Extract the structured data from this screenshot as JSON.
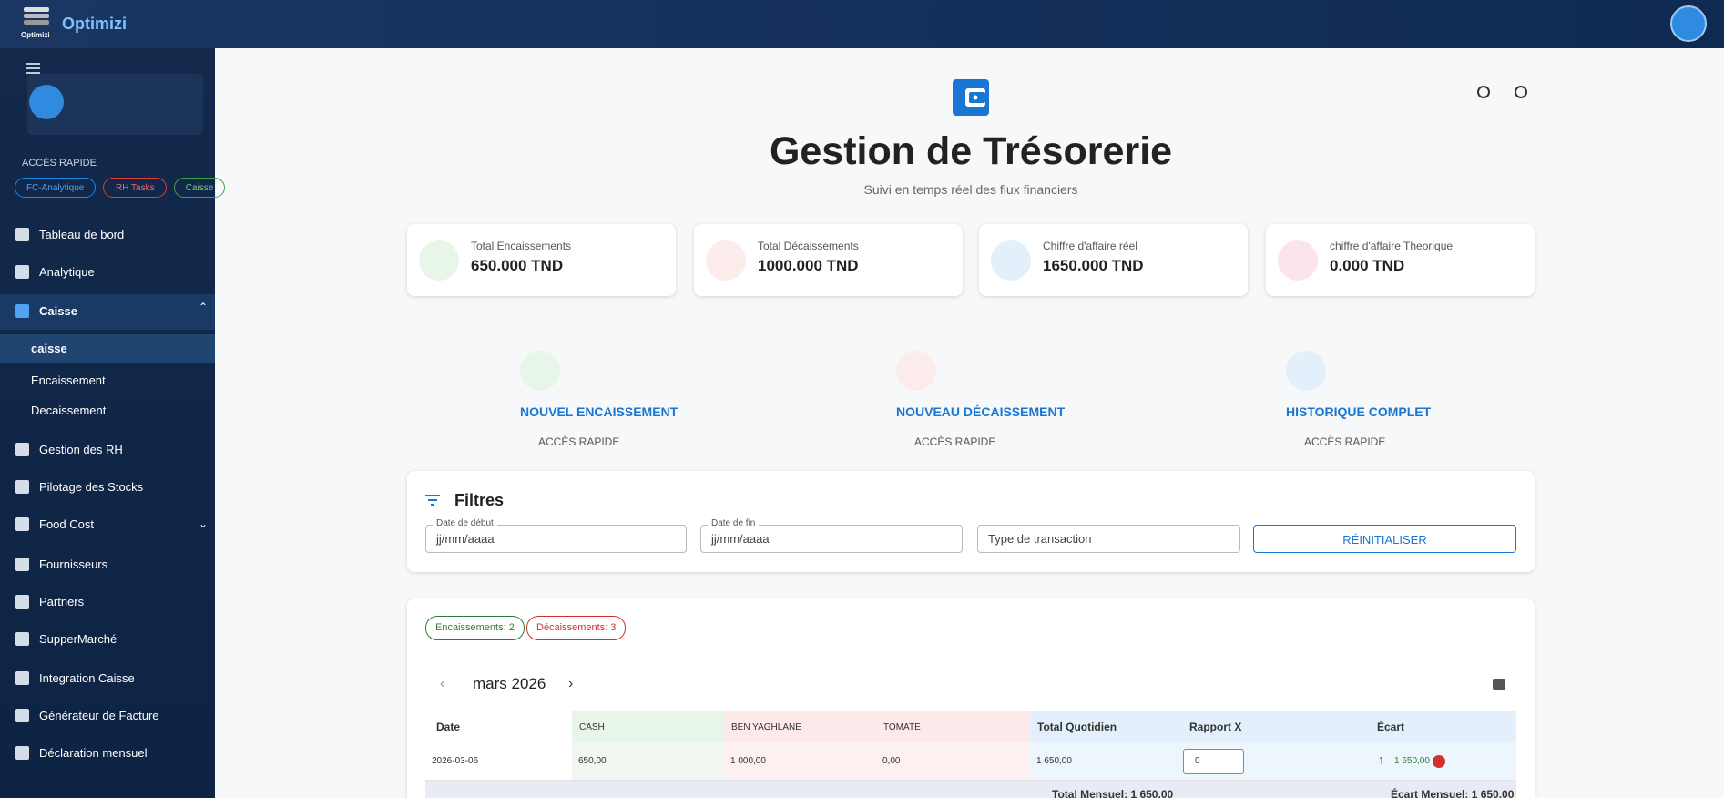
{
  "header": {
    "logo_caption": "Optimizi",
    "brand": "Optimizi"
  },
  "sidebar": {
    "quick_access_title": "ACCÈS RAPIDE",
    "quick_chips": [
      "FC-Analytique",
      "RH Tasks",
      "Caisse"
    ],
    "menu": [
      "Tableau de bord",
      "Analytique",
      "Caisse",
      "Gestion des RH",
      "Pilotage des Stocks",
      "Food Cost",
      "Fournisseurs",
      "Partners",
      "SupperMarché",
      "Integration Caisse",
      "Générateur de Facture",
      "Déclaration mensuel"
    ],
    "submenu": [
      "caisse",
      "Encaissement",
      "Decaissement"
    ]
  },
  "page": {
    "title": "Gestion de Trésorerie",
    "subtitle": "Suivi en temps réel des flux financiers"
  },
  "stats": [
    {
      "label": "Total Encaissements",
      "value": "650.000 TND"
    },
    {
      "label": "Total Décaissements",
      "value": "1000.000 TND"
    },
    {
      "label": "Chiffre d'affaire réel",
      "value": "1650.000 TND"
    },
    {
      "label": "chiffre d'affaire Theorique",
      "value": "0.000 TND"
    }
  ],
  "quick_actions": [
    {
      "label": "NOUVEL ENCAISSEMENT",
      "sub": "ACCÈS RAPIDE"
    },
    {
      "label": "NOUVEAU DÉCAISSEMENT",
      "sub": "ACCÈS RAPIDE"
    },
    {
      "label": "HISTORIQUE COMPLET",
      "sub": "ACCÈS RAPIDE"
    }
  ],
  "filters": {
    "title": "Filtres",
    "start_label": "Date de début",
    "start_placeholder": "jj/mm/aaaa",
    "end_label": "Date de fin",
    "end_placeholder": "jj/mm/aaaa",
    "type_placeholder": "Type de transaction",
    "reset": "RÉINITIALISER"
  },
  "summary": {
    "chips": [
      "Encaissements: 2",
      "Décaissements: 3"
    ],
    "month": "mars 2026"
  },
  "table": {
    "columns": [
      "Date",
      "CASH",
      "BEN YAGHLANE",
      "TOMATE",
      "Total Quotidien",
      "Rapport X",
      "Écart"
    ],
    "rows": [
      [
        "2026-03-06",
        "650,00",
        "1 000,00",
        "0,00",
        "1 650,00",
        "0",
        "1 650,00"
      ]
    ],
    "totals": [
      "Total Mensuel: 1 650,00",
      "Écart Mensuel: 1 650,00"
    ]
  }
}
